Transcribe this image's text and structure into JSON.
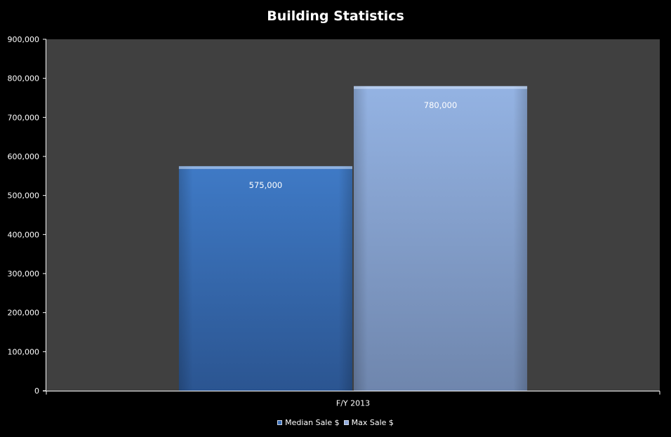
{
  "chart_data": {
    "type": "bar",
    "title": "Building Statistics",
    "categories": [
      "F/Y 2013"
    ],
    "series": [
      {
        "name": "Median Sale $",
        "values": [
          575000
        ],
        "color": "#3a6fb8",
        "data_label": "575,000"
      },
      {
        "name": "Max Sale $",
        "values": [
          780000
        ],
        "color": "#8faadc",
        "data_label": "780,000"
      }
    ],
    "ylim": [
      0,
      900000
    ],
    "y_ticks": [
      {
        "value": 0,
        "label": "0"
      },
      {
        "value": 100000,
        "label": "100,000"
      },
      {
        "value": 200000,
        "label": "200,000"
      },
      {
        "value": 300000,
        "label": "300,000"
      },
      {
        "value": 400000,
        "label": "400,000"
      },
      {
        "value": 500000,
        "label": "500,000"
      },
      {
        "value": 600000,
        "label": "600,000"
      },
      {
        "value": 700000,
        "label": "700,000"
      },
      {
        "value": 800000,
        "label": "800,000"
      },
      {
        "value": 900000,
        "label": "900,000"
      }
    ],
    "gridlines": false,
    "plot_background": "#404040",
    "page_background": "#000000",
    "legend_position": "bottom"
  }
}
